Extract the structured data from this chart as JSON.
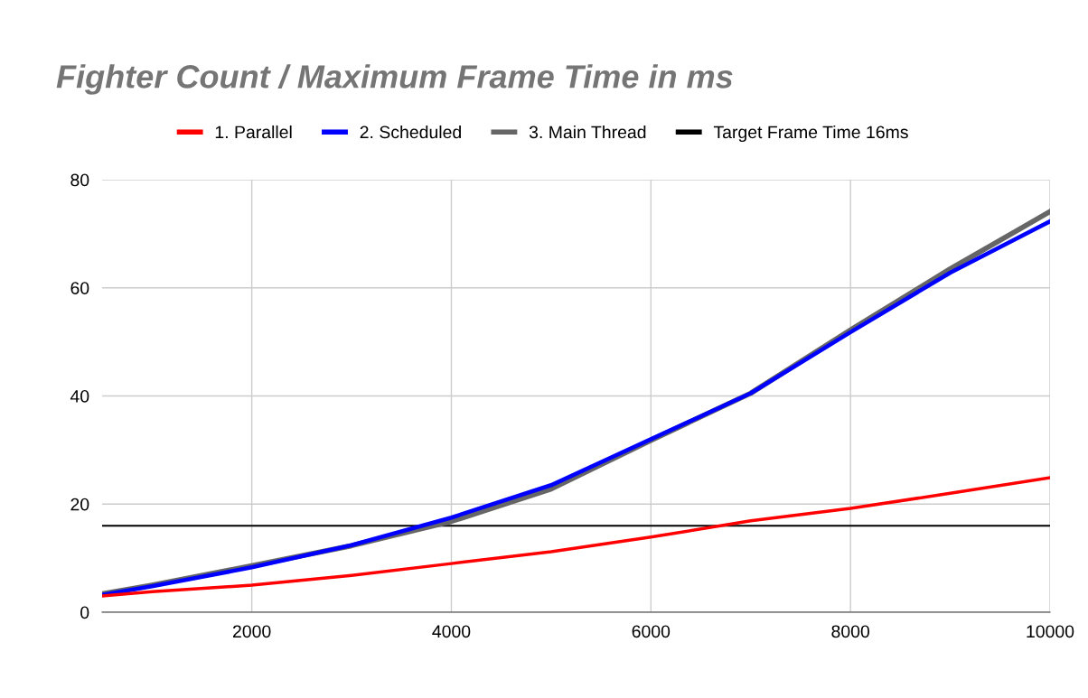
{
  "chart_data": {
    "type": "line",
    "title": "Fighter Count / Maximum Frame Time in ms",
    "x": [
      500,
      1000,
      2000,
      3000,
      4000,
      5000,
      6000,
      7000,
      8000,
      9000,
      10000
    ],
    "series": [
      {
        "name": "1. Parallel",
        "color": "#ff0000",
        "values": [
          3.0,
          3.8,
          5.0,
          6.8,
          9.0,
          11.2,
          13.9,
          16.9,
          19.2,
          22.0,
          24.9
        ]
      },
      {
        "name": "2. Scheduled",
        "color": "#0000ff",
        "values": [
          3.2,
          4.8,
          8.3,
          12.4,
          17.5,
          23.5,
          32.0,
          40.5,
          51.8,
          62.8,
          72.3
        ]
      },
      {
        "name": "3. Main Thread",
        "color": "#666666",
        "values": [
          3.4,
          5.0,
          8.6,
          12.3,
          16.8,
          22.8,
          31.8,
          40.5,
          52.2,
          63.5,
          74.1
        ]
      },
      {
        "name": "Target Frame Time 16ms",
        "color": "#000000",
        "values": [
          16,
          16,
          16,
          16,
          16,
          16,
          16,
          16,
          16,
          16,
          16
        ]
      }
    ],
    "xlim": [
      500,
      10000
    ],
    "xticks": [
      2000,
      4000,
      6000,
      8000,
      10000
    ],
    "ylim": [
      0,
      80
    ],
    "yticks": [
      0,
      20,
      40,
      60,
      80
    ],
    "grid": true,
    "legend": "top",
    "marker": "none",
    "line_style": "solid"
  }
}
